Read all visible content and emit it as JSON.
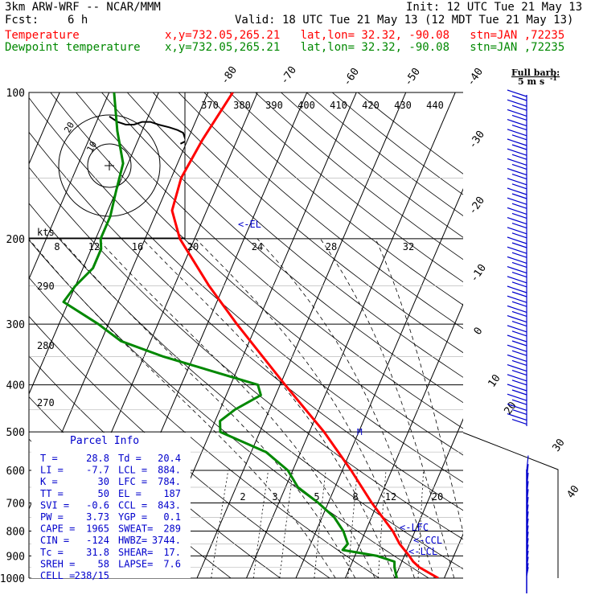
{
  "header": {
    "model": "3km ARW-WRF -- NCAR/MMM",
    "init": "Init: 12 UTC Tue 21 May 13",
    "fcst_label": "Fcst:",
    "fcst_value": "6 h",
    "valid": "Valid: 18 UTC Tue 21 May 13 (12 MDT Tue 21 May 13)",
    "temp_label": "Temperature",
    "dew_label": "Dewpoint temperature",
    "loc_text": "x,y=732.05,265.21   lat,lon= 32.32, -90.08   stn=JAN ,72235"
  },
  "barb_legend": {
    "line1": "Full barb:",
    "line2": "5 m s",
    "sup": "-1"
  },
  "colors": {
    "temperature": "#ff0000",
    "dewpoint": "#008800",
    "wind": "#0000cc",
    "axis": "#000000"
  },
  "chart_data": {
    "type": "line",
    "title": "",
    "xlabel": "",
    "ylabel": "",
    "y_scale": "log-pressure",
    "ylim": [
      1000,
      100
    ],
    "pressure_ticks": [
      100,
      200,
      300,
      400,
      500,
      600,
      700,
      800,
      900,
      1000
    ],
    "skewed_isotherm_labels": [
      -80,
      -70,
      -60,
      -50,
      -40,
      -30,
      -20,
      -10,
      0,
      10,
      20,
      30,
      40
    ],
    "theta_labels": [
      370,
      380,
      390,
      400,
      410,
      420,
      430,
      440
    ],
    "theta_left_labels": [
      290,
      280,
      270
    ],
    "mixing_ratio_labels": [
      2,
      3,
      5,
      8,
      12,
      20
    ],
    "el_label": "<-EL",
    "lfc_label": "<-LFC",
    "ccl_label": "<-CCL",
    "lcl_label": "<-LCL",
    "m_label": "M",
    "series": [
      {
        "name": "Temperature",
        "p": [
          1000,
          950,
          925,
          900,
          850,
          800,
          700,
          600,
          500,
          400,
          300,
          250,
          200,
          175,
          150,
          125,
          100
        ],
        "t": [
          28.8,
          24.0,
          22.3,
          21.0,
          18.0,
          15.5,
          8.8,
          1.8,
          -7.0,
          -19.0,
          -34.0,
          -43.0,
          -53.0,
          -57.0,
          -58.0,
          -57.0,
          -55.0
        ]
      },
      {
        "name": "Dewpoint temperature",
        "p": [
          1000,
          950,
          925,
          900,
          875,
          850,
          800,
          750,
          700,
          650,
          600,
          550,
          500,
          475,
          450,
          420,
          400,
          350,
          325,
          300,
          270,
          250,
          230,
          210,
          200,
          180,
          160,
          140,
          120,
          100
        ],
        "td": [
          20.4,
          19.0,
          18.5,
          14.5,
          7.0,
          7.5,
          5.5,
          2.5,
          -2.0,
          -7.5,
          -11.0,
          -17.0,
          -28.0,
          -29.0,
          -27.0,
          -23.0,
          -24.5,
          -46.0,
          -56.0,
          -62.0,
          -71.0,
          -70.0,
          -68.0,
          -68.0,
          -69.0,
          -69.0,
          -70.0,
          -71.0,
          -75.0,
          -79.0
        ]
      }
    ],
    "hodograph": {
      "ring_labels": [
        "10",
        "20"
      ],
      "axis_label": "kts",
      "speed_ticks": [
        8,
        12,
        16,
        20,
        24,
        28,
        32
      ],
      "u": [
        0,
        3,
        6,
        9,
        12,
        15,
        18,
        22,
        25,
        27,
        28,
        26
      ],
      "v": [
        18,
        16,
        15,
        15,
        16,
        16,
        15,
        14,
        13,
        12,
        9,
        8
      ]
    },
    "wind_profile": {
      "p": [
        990,
        975,
        950,
        925,
        900,
        875,
        850,
        825,
        800,
        775,
        750,
        725,
        700,
        675,
        650,
        625,
        600
      ],
      "spd": [
        10,
        12,
        14,
        15,
        16,
        17,
        18,
        18,
        19,
        20,
        20,
        21,
        22,
        23,
        24,
        25,
        25
      ]
    },
    "wind_profile_upper_barbs": 34
  },
  "parcel_info": {
    "title": "Parcel Info",
    "rows": [
      [
        "T   =",
        "28.8",
        "Td  =",
        "20.4"
      ],
      [
        "LI  =",
        "-7.7",
        "LCL =",
        "884."
      ],
      [
        "K   =",
        "30",
        "LFC =",
        "784."
      ],
      [
        "TT  =",
        "50",
        "EL  =",
        "187"
      ],
      [
        "SVI =",
        "-0.6",
        "CCL =",
        "843."
      ],
      [
        "PW  =",
        "3.73",
        "YGP =",
        "0.1"
      ],
      [
        "CAPE =",
        "1965",
        "SWEAT=",
        "289"
      ],
      [
        "CIN  =",
        "-124",
        "HWBZ=",
        "3744."
      ],
      [
        "Tc  =",
        "31.8",
        "SHEAR=",
        "17."
      ],
      [
        "SREH =",
        "58",
        "LAPSE=",
        "7.6"
      ],
      [
        "CELL =",
        "238/15",
        "",
        ""
      ]
    ]
  }
}
